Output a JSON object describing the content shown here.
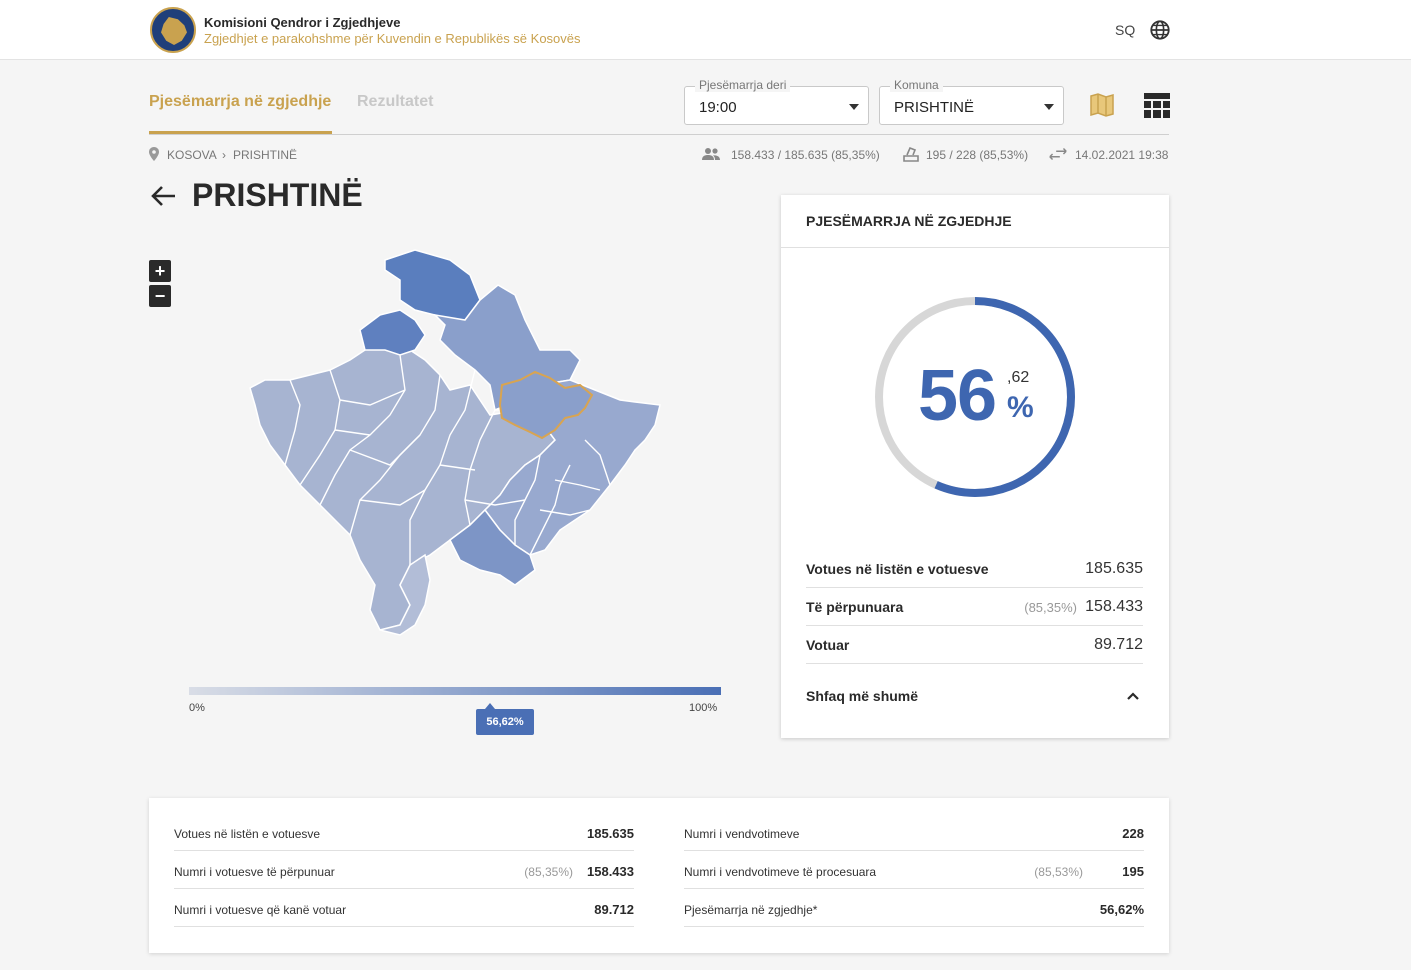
{
  "header": {
    "org_name": "Komisioni Qendror i Zgjedhjeve",
    "org_subtitle": "Zgjedhjet e parakohshme për Kuvendin e Republikës së Kosovës",
    "language": "SQ"
  },
  "tabs": [
    {
      "label": "Pjesëmarrja në zgjedhje",
      "active": true
    },
    {
      "label": "Rezultatet",
      "active": false
    }
  ],
  "filters": {
    "time": {
      "legend": "Pjesëmarrja deri",
      "value": "19:00"
    },
    "komuna": {
      "legend": "Komuna",
      "value": "PRISHTINË"
    }
  },
  "breadcrumb": {
    "root": "KOSOVA",
    "sep": "›",
    "current": "PRISHTINË"
  },
  "stats": {
    "voters": "158.433 / 185.635 (85,35%)",
    "stations": "195 / 228 (85,53%)",
    "updated": "14.02.2021 19:38"
  },
  "page_title": "PRISHTINË",
  "zoom": {
    "in": "+",
    "out": "−"
  },
  "legend": {
    "min": "0%",
    "max": "100%",
    "marker": "56,62%",
    "marker_fraction": 0.5662
  },
  "colors": {
    "accent": "#c9a24f",
    "primary": "#3e66b0",
    "selected_outline": "#d9a450"
  },
  "card": {
    "title": "PJESËMARRJA NË ZGJEDHJE",
    "turnout_fraction": 0.5662,
    "big_int": "56",
    "big_dec": ",62",
    "big_pct": "%",
    "rows": [
      {
        "label": "Votues në listën e votuesve",
        "pct": "",
        "value": "185.635"
      },
      {
        "label": "Të përpunuara",
        "pct": "(85,35%)",
        "value": "158.433"
      },
      {
        "label": "Votuar",
        "pct": "",
        "value": "89.712"
      }
    ],
    "more_label": "Shfaq më shumë"
  },
  "summary": {
    "left": [
      {
        "label": "Votues në listën e votuesve",
        "pct": "",
        "value": "185.635"
      },
      {
        "label": "Numri i votuesve të përpunuar",
        "pct": "(85,35%)",
        "value": "158.433"
      },
      {
        "label": "Numri i votuesve që kanë votuar",
        "pct": "",
        "value": "89.712"
      }
    ],
    "right": [
      {
        "label": "Numri i vendvotimeve",
        "pct": "",
        "value": "228"
      },
      {
        "label": "Numri i vendvotimeve të procesuara",
        "pct": "(85,53%)",
        "value": "195"
      },
      {
        "label": "Pjesëmarrja në zgjedhje*",
        "pct": "",
        "value": "56,62%"
      }
    ]
  },
  "icons": [
    "globe-icon",
    "location-pin-icon",
    "people-icon",
    "ballot-box-icon",
    "sync-arrows-icon",
    "back-arrow-icon",
    "map-view-icon",
    "table-view-icon",
    "chevron-up-icon"
  ]
}
